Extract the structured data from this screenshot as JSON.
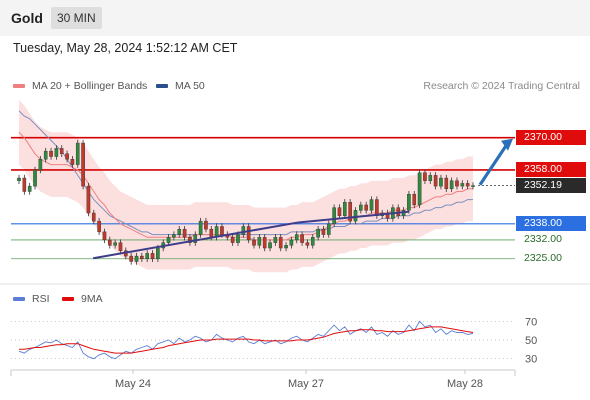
{
  "header": {
    "symbol": "Gold",
    "timeframe": "30 MIN"
  },
  "datetime": "Tuesday, May 28, 2024 1:52:12 AM CET",
  "legend": {
    "ma20": {
      "label": "MA 20 + Bollinger Bands",
      "color": "#f08080"
    },
    "ma50": {
      "label": "MA 50",
      "color": "#2b4f8c"
    },
    "research": "Research © 2024 Trading Central"
  },
  "rsi_legend": {
    "rsi": {
      "label": "RSI",
      "color": "#5b7fd6"
    },
    "ma9": {
      "label": "9MA",
      "color": "#e00c0c"
    }
  },
  "levels": [
    {
      "value": "2370.00",
      "style": "red",
      "line": "#d40000",
      "price": 2370.0
    },
    {
      "value": "2358.00",
      "style": "red",
      "line": "#d40000",
      "price": 2358.0
    },
    {
      "value": "2352.19",
      "style": "dark",
      "line": "#333333",
      "price": 2352.19
    },
    {
      "value": "2338.00",
      "style": "blue",
      "line": "#2b6fe0",
      "price": 2338.0
    },
    {
      "value": "2332.00",
      "style": "plain",
      "line": "#5aa05a",
      "price": 2332.0
    },
    {
      "value": "2325.00",
      "style": "plain",
      "line": "#5aa05a",
      "price": 2325.0
    }
  ],
  "x_labels": [
    "May 24",
    "May 27",
    "May 28"
  ],
  "rsi_ticks": [
    "70",
    "50",
    "30"
  ],
  "chart_data": {
    "type": "candlestick",
    "ylim": [
      2316,
      2384
    ],
    "close_series": [
      2355,
      2350,
      2352,
      2358,
      2362,
      2365,
      2363,
      2366,
      2364,
      2362,
      2360,
      2368,
      2352,
      2342,
      2339,
      2335,
      2332,
      2330,
      2331,
      2328,
      2326,
      2324,
      2326,
      2325,
      2327,
      2325,
      2329,
      2331,
      2333,
      2334,
      2336,
      2333,
      2331,
      2334,
      2339,
      2336,
      2333,
      2337,
      2334,
      2333,
      2331,
      2334,
      2337,
      2332,
      2330,
      2333,
      2329,
      2331,
      2333,
      2329,
      2330,
      2332,
      2334,
      2331,
      2330,
      2333,
      2336,
      2334,
      2338,
      2344,
      2341,
      2346,
      2339,
      2343,
      2345,
      2343,
      2347,
      2341,
      2342,
      2340,
      2344,
      2341,
      2343,
      2349,
      2345,
      2357,
      2354,
      2356,
      2352,
      2355,
      2351,
      2354,
      2352,
      2353,
      2352,
      2352.19
    ],
    "ma20_series": [
      2372,
      2370,
      2367,
      2364,
      2362,
      2361,
      2360,
      2360,
      2360,
      2360,
      2359,
      2358,
      2356,
      2353,
      2350,
      2347,
      2345,
      2342,
      2340,
      2338,
      2337,
      2336,
      2335,
      2334,
      2333,
      2333,
      2333,
      2333,
      2333,
      2333,
      2333,
      2333,
      2333,
      2334,
      2334,
      2334,
      2334,
      2334,
      2334,
      2334,
      2333,
      2333,
      2333,
      2333,
      2332,
      2332,
      2332,
      2332,
      2332,
      2332,
      2332,
      2333,
      2333,
      2334,
      2334,
      2334,
      2335,
      2336,
      2337,
      2338,
      2339,
      2339,
      2340,
      2340,
      2341,
      2341,
      2342,
      2342,
      2342,
      2342,
      2343,
      2343,
      2343,
      2344,
      2344,
      2345,
      2346,
      2347,
      2348,
      2348,
      2349,
      2349,
      2350,
      2350,
      2351,
      2351
    ],
    "ma50_series": [
      2380,
      2378,
      2377,
      2375,
      2373,
      2371,
      2369,
      2367,
      2365,
      2362,
      2359,
      2356,
      2353,
      2350,
      2347,
      2345,
      2343,
      2341,
      2340,
      2339,
      2338,
      2337,
      2336,
      2335,
      2335,
      2334,
      2334,
      2334,
      2334,
      2334,
      2334,
      2334,
      2334,
      2334,
      2334,
      2334,
      2334,
      2334,
      2334,
      2334,
      2334,
      2334,
      2334,
      2334,
      2334,
      2334,
      2334,
      2334,
      2334,
      2334,
      2334,
      2335,
      2335,
      2335,
      2335,
      2335,
      2336,
      2336,
      2336,
      2337,
      2337,
      2337,
      2338,
      2338,
      2338,
      2339,
      2339,
      2339,
      2340,
      2340,
      2340,
      2341,
      2341,
      2341,
      2342,
      2342,
      2343,
      2343,
      2344,
      2344,
      2345,
      2345,
      2346,
      2346,
      2347,
      2347
    ],
    "band_width": 12,
    "trendlines": [
      {
        "from": [
          0.163,
          2325.2
        ],
        "to": [
          0.57,
          2338.5
        ],
        "color": "#3d3d8a"
      },
      {
        "from": [
          0.57,
          2338.5
        ],
        "to": [
          0.79,
          2342.5
        ],
        "color": "#3d3d8a"
      }
    ],
    "rsi": [
      38,
      36,
      40,
      42,
      45,
      48,
      47,
      50,
      46,
      44,
      42,
      48,
      36,
      32,
      30,
      34,
      36,
      32,
      30,
      34,
      38,
      36,
      40,
      42,
      44,
      40,
      46,
      48,
      50,
      46,
      52,
      48,
      50,
      54,
      52,
      48,
      50,
      56,
      52,
      50,
      48,
      52,
      54,
      48,
      46,
      50,
      46,
      48,
      50,
      46,
      48,
      52,
      54,
      50,
      48,
      52,
      56,
      54,
      60,
      66,
      60,
      64,
      56,
      60,
      62,
      58,
      64,
      56,
      58,
      54,
      60,
      56,
      58,
      66,
      60,
      70,
      64,
      66,
      58,
      62,
      56,
      60,
      58,
      58,
      56,
      57
    ],
    "rsi_ma9": [
      40,
      40,
      41,
      42,
      42,
      43,
      44,
      45,
      45,
      46,
      46,
      46,
      44,
      42,
      40,
      39,
      38,
      37,
      36,
      36,
      36,
      36,
      37,
      38,
      39,
      40,
      41,
      42,
      44,
      45,
      46,
      47,
      48,
      49,
      50,
      50,
      50,
      51,
      51,
      51,
      51,
      51,
      51,
      51,
      50,
      50,
      49,
      49,
      49,
      49,
      49,
      49,
      50,
      50,
      50,
      51,
      52,
      53,
      55,
      57,
      58,
      59,
      60,
      60,
      61,
      61,
      61,
      60,
      60,
      59,
      59,
      59,
      59,
      60,
      61,
      62,
      63,
      64,
      64,
      64,
      63,
      62,
      61,
      60,
      59,
      58
    ]
  }
}
